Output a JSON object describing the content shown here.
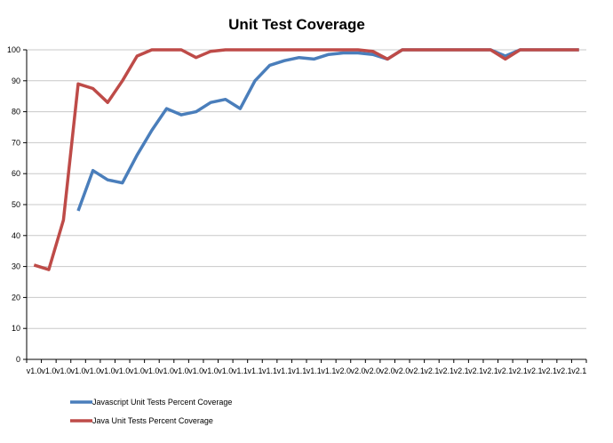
{
  "chart_data": {
    "type": "line",
    "title": "Unit Test Coverage",
    "xlabel": "",
    "ylabel": "",
    "ylim": [
      0,
      100
    ],
    "yticks": [
      0,
      10,
      20,
      30,
      40,
      50,
      60,
      70,
      80,
      90,
      100
    ],
    "grid": true,
    "legend_position": "bottom-left",
    "categories": [
      "v1.0",
      "v1.0",
      "v1.0",
      "v1.0",
      "v1.0",
      "v1.0",
      "v1.0",
      "v1.0",
      "v1.0",
      "v1.0",
      "v1.0",
      "v1.0",
      "v1.0",
      "v1.0",
      "v1.1",
      "v1.1",
      "v1.1",
      "v1.1",
      "v1.1",
      "v1.1",
      "v1.1",
      "v2.0",
      "v2.0",
      "v2.0",
      "v2.0",
      "v2.0",
      "v2.1",
      "v2.1",
      "v2.1",
      "v2.1",
      "v2.1",
      "v2.1",
      "v2.1",
      "v2.1",
      "v2.1",
      "v2.1",
      "v2.1",
      "v2.1"
    ],
    "series": [
      {
        "name": "Javascript Unit Tests Percent Coverage",
        "color": "#4a7ebb",
        "values": [
          null,
          null,
          null,
          48,
          61,
          58,
          57,
          66,
          74,
          81,
          79,
          80,
          83,
          84,
          81,
          90,
          95,
          96.5,
          97.5,
          97,
          98.5,
          99,
          99,
          98.5,
          97,
          100,
          100,
          100,
          100,
          100,
          100,
          100,
          98,
          100,
          100,
          100,
          100,
          100
        ]
      },
      {
        "name": "Java Unit Tests Percent Coverage",
        "color": "#be4b48",
        "values": [
          30.5,
          29,
          45,
          89,
          87.5,
          83,
          90,
          98,
          100,
          100,
          100,
          97.5,
          99.5,
          100,
          100,
          100,
          100,
          100,
          100,
          100,
          100,
          100,
          100,
          99.5,
          97,
          100,
          100,
          100,
          100,
          100,
          100,
          100,
          97,
          100,
          100,
          100,
          100,
          100
        ]
      }
    ]
  }
}
